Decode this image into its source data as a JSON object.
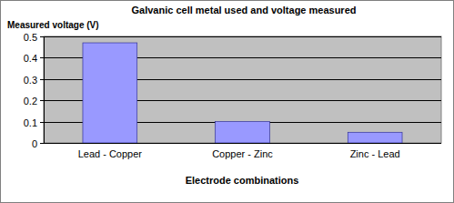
{
  "chart_data": {
    "type": "bar",
    "title": "Galvanic cell metal used and voltage measured",
    "x_label": "Electrode combinations",
    "y_label": "Measured voltage (V)",
    "categories": [
      "Lead - Copper",
      "Copper - Zinc",
      "Zinc - Lead"
    ],
    "values": [
      0.47,
      0.1,
      0.05
    ],
    "color": "#9999ff",
    "ylim": [
      0,
      0.5
    ],
    "yticks": [
      0,
      0.1,
      0.2,
      0.3,
      0.4,
      0.5
    ],
    "grid": true
  }
}
